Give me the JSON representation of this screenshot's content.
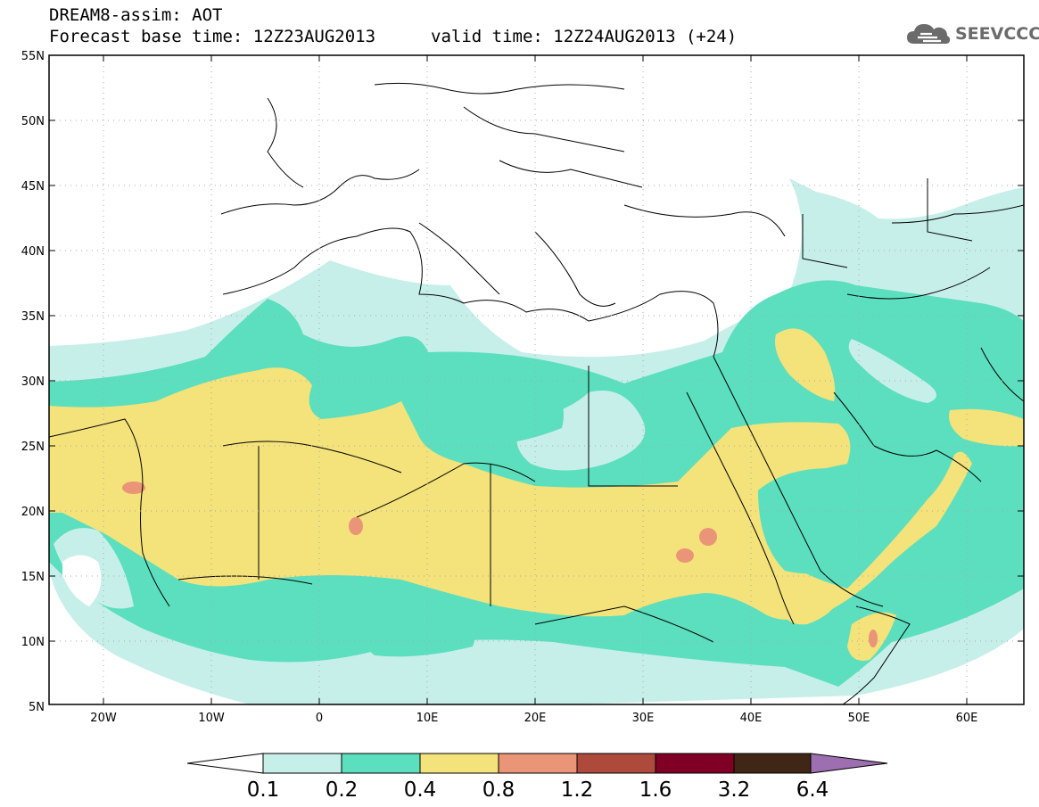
{
  "header": {
    "line1": "DREAM8-assim: AOT",
    "line2": "Forecast base time: 12Z23AUG2013",
    "valid": "valid time: 12Z24AUG2013 (+24)",
    "logo_text": "SEEVCCC"
  },
  "map": {
    "lon_range": [
      -25,
      65
    ],
    "lat_range": [
      5,
      55
    ],
    "lat_labels": [
      "55N",
      "50N",
      "45N",
      "40N",
      "35N",
      "30N",
      "25N",
      "20N",
      "15N",
      "10N",
      "5N"
    ],
    "lon_labels": [
      "20W",
      "10W",
      "0",
      "10E",
      "20E",
      "30E",
      "40E",
      "50E",
      "60E"
    ],
    "grid": "dotted"
  },
  "colorbar": {
    "labels": [
      "0.1",
      "0.2",
      "0.4",
      "0.8",
      "1.2",
      "1.6",
      "3.2",
      "6.4"
    ],
    "colors": [
      "#ffffff",
      "#c7efe9",
      "#5cdfbe",
      "#f4e27a",
      "#ea9577",
      "#ad4a3c",
      "#800025",
      "#402614",
      "#9d6fb0"
    ]
  },
  "colors": {
    "level1": "#c7efe9",
    "level2": "#5cdfbe",
    "level3": "#f4e27a",
    "level4": "#ea9577"
  }
}
